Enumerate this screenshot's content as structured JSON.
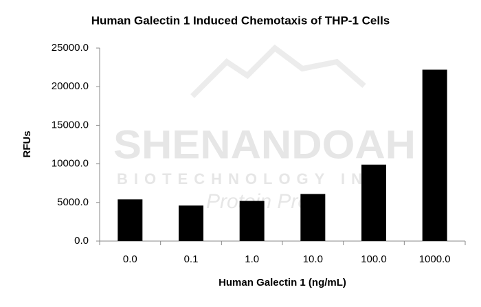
{
  "chart_data": {
    "type": "bar",
    "title": "Human Galectin 1 Induced Chemotaxis of THP-1 Cells",
    "x_label": "Human Galectin 1 (ng/mL)",
    "y_label": "RFUs",
    "watermark": [
      "SHENANDOAH",
      "BIOTECHNOLOGY INC",
      "Protein Pros"
    ],
    "categories": [
      "0.0",
      "0.1",
      "1.0",
      "10.0",
      "100.0",
      "1000.0"
    ],
    "values": [
      5400,
      4600,
      5200,
      6100,
      9900,
      22200
    ],
    "color": "#000000",
    "ylim": [
      0,
      25000
    ],
    "yticks": [
      {
        "value": 0,
        "label": "0.0"
      },
      {
        "value": 5000,
        "label": "5000.0"
      },
      {
        "value": 10000,
        "label": "10000.0"
      },
      {
        "value": 15000,
        "label": "15000.0"
      },
      {
        "value": 20000,
        "label": "20000.0"
      },
      {
        "value": 25000,
        "label": "25000.0"
      }
    ],
    "grid": false
  }
}
